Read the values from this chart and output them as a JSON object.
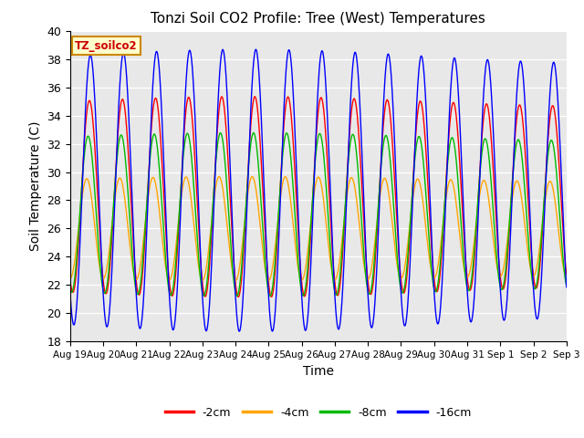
{
  "title": "Tonzi Soil CO2 Profile: Tree (West) Temperatures",
  "xlabel": "Time",
  "ylabel": "Soil Temperature (C)",
  "ylim": [
    18,
    40
  ],
  "legend_label": "TZ_soilco2",
  "legend_entries": [
    "-2cm",
    "-4cm",
    "-8cm",
    "-16cm"
  ],
  "line_colors": [
    "#ff0000",
    "#ffa500",
    "#00bb00",
    "#0000ff"
  ],
  "bg_color": "#e8e8e8",
  "tick_labels": [
    "Aug 19",
    "Aug 20",
    "Aug 21",
    "Aug 22",
    "Aug 23",
    "Aug 24",
    "Aug 25",
    "Aug 26",
    "Aug 27",
    "Aug 28",
    "Aug 29",
    "Aug 30",
    "Aug 31",
    "Sep 1",
    "Sep 2",
    "Sep 3"
  ],
  "n_days": 15,
  "samples_per_day": 96,
  "depth_params": [
    {
      "tmin": 21.5,
      "tmax": 35.0,
      "phase": 0.0
    },
    {
      "tmin": 22.5,
      "tmax": 29.5,
      "phase": 0.08
    },
    {
      "tmin": 21.5,
      "tmax": 32.5,
      "phase": 0.04
    },
    {
      "tmin": 19.2,
      "tmax": 38.2,
      "phase": -0.03
    }
  ]
}
